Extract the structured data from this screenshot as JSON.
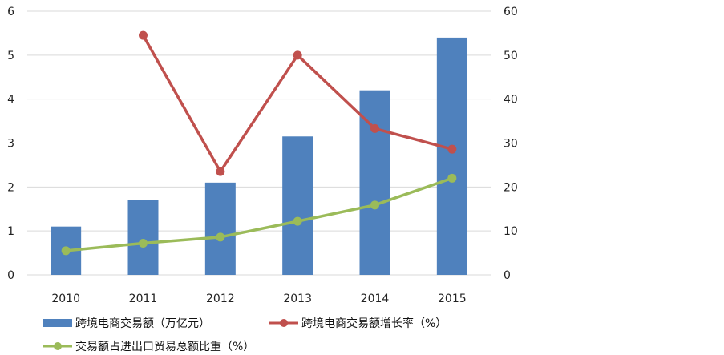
{
  "chart_data": {
    "type": "bar",
    "categories": [
      "2010",
      "2011",
      "2012",
      "2013",
      "2014",
      "2015"
    ],
    "left_axis": {
      "ylim": [
        0,
        6
      ],
      "ticks": [
        "0",
        "1",
        "2",
        "3",
        "4",
        "5",
        "6"
      ]
    },
    "right_axis": {
      "ylim": [
        0,
        60
      ],
      "ticks": [
        "0",
        "10",
        "20",
        "30",
        "40",
        "50",
        "60"
      ]
    },
    "series": [
      {
        "name": "跨境电商交易额（万亿元）",
        "type": "bar",
        "axis": "left",
        "color": "#4f81bd",
        "values": [
          1.1,
          1.7,
          2.1,
          3.15,
          4.2,
          5.4
        ]
      },
      {
        "name": "跨境电商交易额增长率（%）",
        "type": "line",
        "axis": "right",
        "color": "#c0504d",
        "values": [
          null,
          54.5,
          23.5,
          50,
          33.3,
          28.6
        ]
      },
      {
        "name": "交易额占进出口贸易总额比重（%）",
        "type": "line",
        "axis": "right",
        "color": "#9bbb59",
        "values": [
          5.5,
          7.2,
          8.6,
          12.2,
          15.9,
          22
        ]
      }
    ],
    "grid": true,
    "legend": "bottom",
    "title": "",
    "xlabel": "",
    "ylabel": ""
  }
}
